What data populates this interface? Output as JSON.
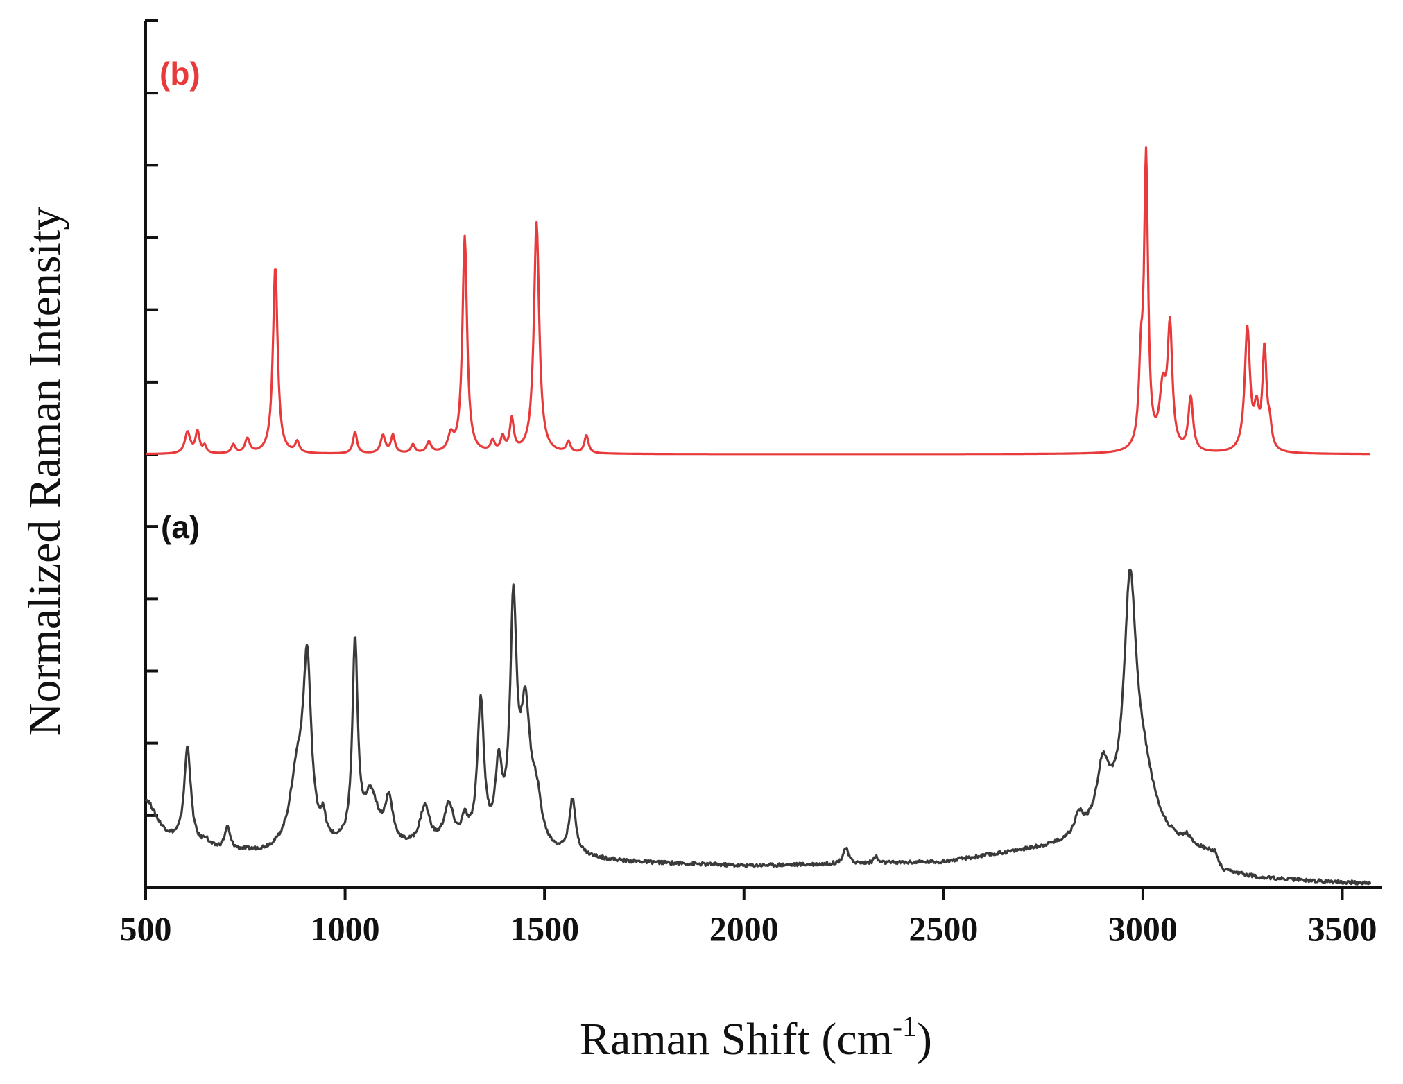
{
  "chart_data": {
    "type": "line",
    "xlabel_main": "Raman Shift (cm",
    "xlabel_sup": "-1",
    "xlabel_tail": ")",
    "ylabel": "Normalized Raman Intensity",
    "xlim": [
      500,
      3600
    ],
    "ylim": [
      0,
      12
    ],
    "x_ticks": [
      500,
      1000,
      1500,
      2000,
      2500,
      3000,
      3500
    ],
    "y_ticks": [
      0,
      1,
      2,
      3,
      4,
      5,
      6,
      7,
      8,
      9,
      10,
      11,
      12
    ],
    "y_tick_labels_shown": false,
    "grid": false,
    "series": [
      {
        "label": "(b)",
        "color": "#e8393b",
        "baseline": 6,
        "peaks": [
          [
            605,
            0.3,
            8
          ],
          [
            630,
            0.3,
            6
          ],
          [
            648,
            0.1,
            5
          ],
          [
            720,
            0.12,
            6
          ],
          [
            755,
            0.2,
            7
          ],
          [
            825,
            2.6,
            7
          ],
          [
            880,
            0.15,
            6
          ],
          [
            1025,
            0.3,
            6
          ],
          [
            1095,
            0.25,
            7
          ],
          [
            1120,
            0.25,
            6
          ],
          [
            1170,
            0.12,
            6
          ],
          [
            1210,
            0.15,
            7
          ],
          [
            1265,
            0.22,
            8
          ],
          [
            1300,
            3.0,
            7
          ],
          [
            1370,
            0.15,
            6
          ],
          [
            1395,
            0.2,
            6
          ],
          [
            1418,
            0.45,
            6
          ],
          [
            1480,
            3.2,
            8
          ],
          [
            1560,
            0.15,
            6
          ],
          [
            1605,
            0.25,
            6
          ],
          [
            2995,
            1.0,
            6
          ],
          [
            3008,
            4.0,
            6
          ],
          [
            3050,
            0.8,
            10
          ],
          [
            3068,
            1.65,
            7
          ],
          [
            3120,
            0.75,
            7
          ],
          [
            3262,
            1.7,
            8
          ],
          [
            3285,
            0.5,
            7
          ],
          [
            3305,
            1.4,
            6
          ],
          [
            3318,
            0.3,
            6
          ]
        ]
      },
      {
        "label": "(a)",
        "color": "#3a3a3a",
        "baseline": 0,
        "background": [
          [
            500,
            0.6
          ],
          [
            650,
            0.5
          ],
          [
            800,
            0.45
          ],
          [
            1000,
            0.5
          ],
          [
            1300,
            0.5
          ],
          [
            1600,
            0.4
          ],
          [
            1700,
            0.35
          ],
          [
            2000,
            0.3
          ],
          [
            2500,
            0.35
          ],
          [
            2700,
            0.5
          ],
          [
            2850,
            0.6
          ],
          [
            2950,
            0.8
          ],
          [
            3050,
            0.6
          ],
          [
            3180,
            0.45
          ],
          [
            3200,
            0.2
          ],
          [
            3300,
            0.12
          ],
          [
            3450,
            0.08
          ],
          [
            3600,
            0.05
          ]
        ],
        "peaks": [
          [
            500,
            0.6,
            35
          ],
          [
            605,
            1.35,
            10
          ],
          [
            650,
            0.1,
            8
          ],
          [
            705,
            0.3,
            8
          ],
          [
            880,
            1.0,
            22
          ],
          [
            905,
            2.4,
            12
          ],
          [
            945,
            0.3,
            8
          ],
          [
            1025,
            2.75,
            8
          ],
          [
            1065,
            0.7,
            22
          ],
          [
            1110,
            0.6,
            12
          ],
          [
            1200,
            0.55,
            15
          ],
          [
            1260,
            0.55,
            15
          ],
          [
            1300,
            0.3,
            10
          ],
          [
            1340,
            2.0,
            10
          ],
          [
            1385,
            1.0,
            10
          ],
          [
            1422,
            3.2,
            10
          ],
          [
            1452,
            1.8,
            15
          ],
          [
            1480,
            0.6,
            15
          ],
          [
            1570,
            0.75,
            10
          ],
          [
            2255,
            0.22,
            8
          ],
          [
            2330,
            0.1,
            5
          ],
          [
            2840,
            0.3,
            15
          ],
          [
            2900,
            0.85,
            20
          ],
          [
            2968,
            3.15,
            18
          ],
          [
            3000,
            0.8,
            35
          ],
          [
            3110,
            0.1,
            10
          ]
        ]
      }
    ]
  }
}
